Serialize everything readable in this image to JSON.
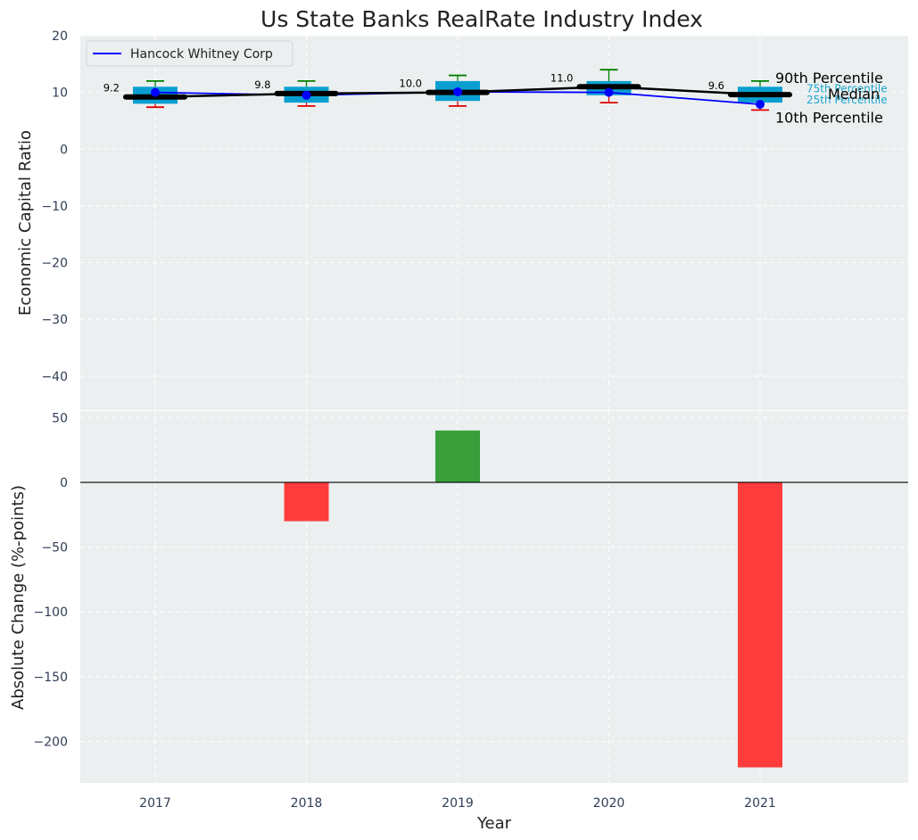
{
  "chart_data": [
    {
      "type": "box",
      "title": "Us State Banks RealRate Industry Index",
      "xlabel": "",
      "ylabel": "Economic Capital Ratio",
      "ylim": [
        -46,
        20
      ],
      "yticks": [
        20,
        10,
        0,
        -10,
        -20,
        -30,
        -40
      ],
      "ytick_labels": [
        "20",
        "10",
        "0",
        "−10",
        "−20",
        "−30",
        "−40"
      ],
      "categories": [
        "2017",
        "2018",
        "2019",
        "2020",
        "2021"
      ],
      "boxes": [
        {
          "p10": 7.4,
          "q1": 8.0,
          "median": 9.2,
          "q3": 11.0,
          "p90": 12.0
        },
        {
          "p10": 7.6,
          "q1": 8.2,
          "median": 9.8,
          "q3": 11.0,
          "p90": 12.0
        },
        {
          "p10": 7.6,
          "q1": 8.5,
          "median": 10.0,
          "q3": 12.0,
          "p90": 13.0
        },
        {
          "p10": 8.2,
          "q1": 9.5,
          "median": 11.0,
          "q3": 12.0,
          "p90": 14.0
        },
        {
          "p10": 6.9,
          "q1": 8.2,
          "median": 9.6,
          "q3": 11.0,
          "p90": 12.0
        }
      ],
      "median_labels": [
        "9.2",
        "9.8",
        "10.0",
        "11.0",
        "9.6"
      ],
      "series": [
        {
          "name": "Hancock Whitney Corp",
          "values": [
            10.0,
            9.5,
            10.1,
            10.0,
            7.9
          ],
          "color": "#0000ff"
        }
      ],
      "legend": {
        "position": "top-left",
        "entries": [
          "Hancock Whitney Corp"
        ]
      },
      "annotations": {
        "p90": "90th Percentile",
        "q3": "75th Percentile",
        "median": "Median",
        "q1": "25th Percentile",
        "p10": "10th Percentile"
      },
      "grid": true
    },
    {
      "type": "bar",
      "xlabel": "Year",
      "ylabel": "Absolute Change (%-points)",
      "ylim": [
        -232,
        55
      ],
      "yticks": [
        50,
        0,
        -50,
        -100,
        -150,
        -200
      ],
      "ytick_labels": [
        "50",
        "0",
        "−50",
        "−100",
        "−150",
        "−200"
      ],
      "categories": [
        "2017",
        "2018",
        "2019",
        "2020",
        "2021"
      ],
      "values": [
        0,
        -30,
        40,
        0,
        -220
      ],
      "grid": true
    }
  ],
  "colors": {
    "background": "#ebeff0",
    "box_fill": "#0a9fd0",
    "median_line": "#000000",
    "whisker_top": "#008000",
    "whisker_bottom": "#e00000",
    "bar_positive": "#3a9e3a",
    "bar_negative": "#ff3c3c",
    "series_line": "#0000ff",
    "quartile_label": "#1aa6cc"
  }
}
